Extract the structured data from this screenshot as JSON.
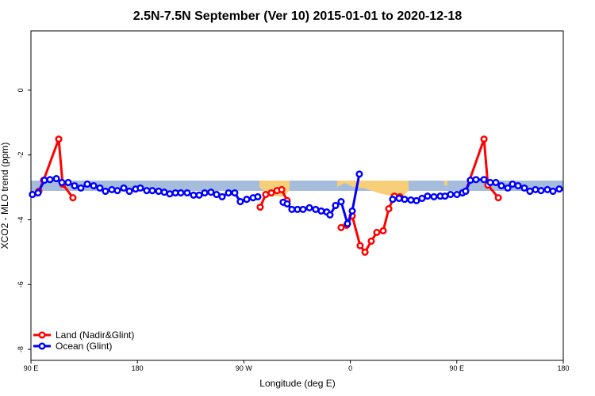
{
  "chart_data": {
    "type": "line",
    "title": "2.5N-7.5N September (Ver 10)   2015-01-01 to 2020-12-18",
    "xlabel": "Longitude (deg E)",
    "ylabel": "XCO2 - MLO trend (ppm)",
    "xlim": [
      90,
      540
    ],
    "ylim": [
      -8.34,
      1.83
    ],
    "xticks": [
      {
        "value": 90,
        "label": "90 E"
      },
      {
        "value": 180,
        "label": "180"
      },
      {
        "value": 270,
        "label": "90 W"
      },
      {
        "value": 360,
        "label": "0"
      },
      {
        "value": 450,
        "label": "90 E"
      },
      {
        "value": 540,
        "label": "180"
      }
    ],
    "yticks": [
      -8,
      -6,
      -4,
      -2,
      0
    ],
    "legend": "bottom-left",
    "series": [
      {
        "name": "Land (Nadir&Glint)",
        "color": "#ff0000",
        "x": [
          91.3,
          96.7,
          100.7,
          113.5,
          116.8,
          125.5,
          null,
          283.8,
          288.5,
          293.2,
          298.0,
          302.0,
          306.6,
          null,
          352.2,
          356.9,
          361.6,
          368.3,
          372.4,
          377.7,
          382.4,
          387.8,
          392.5,
          397.2,
          401.9,
          null,
          454.8,
          457.5,
          473.0,
          476.3,
          485.1
        ],
        "values": [
          -3.22,
          -3.12,
          -2.78,
          -1.51,
          -2.9,
          -3.32,
          null,
          -3.61,
          -3.22,
          -3.17,
          -3.1,
          -3.07,
          -3.41,
          null,
          -4.24,
          -4.17,
          -3.88,
          -4.8,
          -5.0,
          -4.66,
          -4.39,
          -4.34,
          -3.66,
          -3.27,
          -3.29,
          null,
          -3.17,
          -3.12,
          -1.51,
          -2.93,
          -3.32
        ]
      },
      {
        "name": "Ocean (Glint)",
        "color": "#0000ff",
        "x": [
          91.3,
          96.0,
          101.4,
          106.1,
          111.5,
          116.2,
          121.5,
          126.9,
          132.2,
          137.6,
          143.0,
          148.3,
          153.0,
          158.4,
          163.1,
          168.5,
          173.2,
          178.5,
          182.5,
          187.9,
          192.6,
          198.0,
          202.7,
          207.4,
          212.1,
          216.7,
          222.1,
          227.5,
          232.2,
          236.9,
          242.2,
          246.9,
          251.6,
          257.0,
          262.3,
          267.0,
          272.4,
          277.8,
          281.8,
          null,
          303.2,
          306.6,
          310.6,
          315.3,
          320.0,
          325.4,
          330.7,
          335.4,
          340.1,
          342.8,
          347.5,
          352.2,
          357.6,
          361.6,
          367.6,
          null,
          395.8,
          401.2,
          405.9,
          411.2,
          415.9,
          420.6,
          425.3,
          430.7,
          436.0,
          440.0,
          444.7,
          450.1,
          454.8,
          457.5,
          461.5,
          466.2,
          473.0,
          478.3,
          483.0,
          487.7,
          493.1,
          497.1,
          501.8,
          507.1,
          511.8,
          516.5,
          521.2,
          526.6,
          531.3,
          536.6
        ],
        "values": [
          -3.22,
          -3.17,
          -2.78,
          -2.76,
          -2.73,
          -2.85,
          -2.85,
          -2.95,
          -3.02,
          -2.9,
          -2.95,
          -3.02,
          -3.12,
          -3.07,
          -3.1,
          -3.02,
          -3.12,
          -3.05,
          -3.02,
          -3.1,
          -3.1,
          -3.12,
          -3.15,
          -3.2,
          -3.17,
          -3.17,
          -3.17,
          -3.24,
          -3.24,
          -3.17,
          -3.15,
          -3.22,
          -3.29,
          -3.17,
          -3.17,
          -3.44,
          -3.37,
          -3.32,
          -3.29,
          null,
          -3.46,
          -3.51,
          -3.68,
          -3.68,
          -3.68,
          -3.63,
          -3.68,
          -3.73,
          -3.76,
          -3.85,
          -3.56,
          -3.44,
          -4.12,
          -3.73,
          -2.59,
          null,
          -3.37,
          -3.34,
          -3.37,
          -3.39,
          -3.41,
          -3.34,
          -3.27,
          -3.29,
          -3.27,
          -3.27,
          -3.22,
          -3.22,
          -3.17,
          -3.12,
          -2.78,
          -2.76,
          -2.76,
          -2.85,
          -2.85,
          -2.95,
          -3.02,
          -2.9,
          -2.95,
          -3.02,
          -3.12,
          -3.07,
          -3.1,
          -3.07,
          -3.12,
          -3.05
        ]
      }
    ]
  }
}
